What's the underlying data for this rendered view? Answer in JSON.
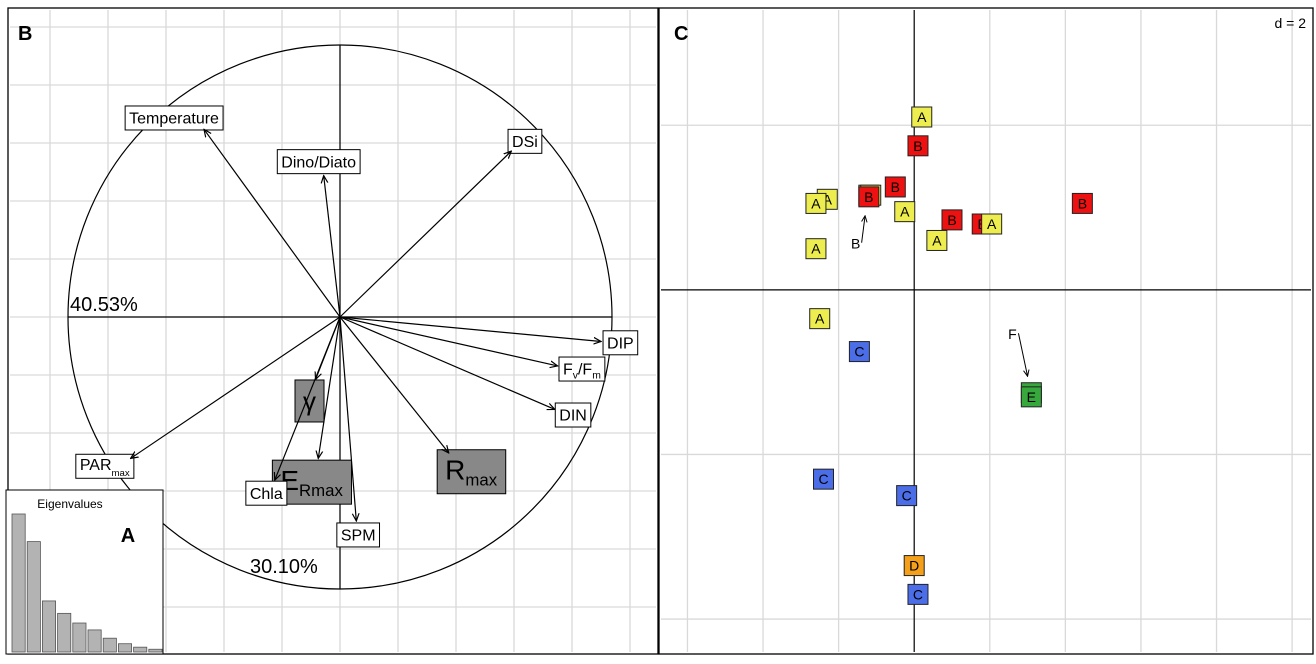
{
  "panels": {
    "b_label": "B",
    "c_label": "C",
    "a_label": "A"
  },
  "chart_data": [
    {
      "panel": "B",
      "type": "scatter",
      "subtype": "correlation circle (PCA variable loadings)",
      "axis_inertia": {
        "x": "40.53%",
        "y": "30.10%"
      },
      "variables": [
        {
          "name": "Temperature",
          "x": -0.5,
          "y": 0.69,
          "style": "box"
        },
        {
          "name": "Dino/Diato",
          "x": -0.06,
          "y": 0.52,
          "style": "box"
        },
        {
          "name": "DSi",
          "x": 0.63,
          "y": 0.61,
          "style": "box"
        },
        {
          "name": "DIP",
          "main": "DIP",
          "x": 0.96,
          "y": -0.09,
          "style": "box"
        },
        {
          "name": "Fv/Fm",
          "main": "F",
          "sub1": "v",
          "mid": "/F",
          "sub2": "m",
          "x": 0.8,
          "y": -0.18,
          "style": "box"
        },
        {
          "name": "DIN",
          "main": "DIN",
          "x": 0.79,
          "y": -0.34,
          "style": "box"
        },
        {
          "name": "PARmax",
          "main": "PAR",
          "sub": "max",
          "x": -0.77,
          "y": -0.52,
          "style": "box"
        },
        {
          "name": "γ",
          "main": "γ",
          "x": -0.09,
          "y": -0.23,
          "style": "grey"
        },
        {
          "name": "ERmax",
          "main": "E",
          "sub": "Rmax",
          "x": -0.08,
          "y": -0.52,
          "style": "grey"
        },
        {
          "name": "Chla",
          "x": -0.24,
          "y": -0.6,
          "style": "box"
        },
        {
          "name": "SPM",
          "x": 0.06,
          "y": -0.75,
          "style": "box"
        },
        {
          "name": "Rmax",
          "main": "R",
          "sub": "max",
          "x": 0.4,
          "y": -0.5,
          "style": "grey"
        }
      ]
    },
    {
      "panel": "A",
      "type": "bar",
      "title": "Eigenvalues",
      "values": [
        1.0,
        0.8,
        0.37,
        0.28,
        0.21,
        0.16,
        0.1,
        0.06,
        0.035,
        0.02
      ]
    },
    {
      "panel": "C",
      "type": "scatter",
      "subtype": "PCA sample scores",
      "grid_scale": "d = 2",
      "grid_step": 2,
      "xlim": [
        -6.7,
        10.5
      ],
      "ylim": [
        -4.4,
        3.4
      ],
      "group_colors": {
        "A": "#eded4f",
        "B": "#ee1111",
        "C": "#4b6ee8",
        "D": "#f5a01a",
        "E": "#36a83c"
      },
      "points": [
        {
          "label": "A",
          "x": 0.2,
          "y": 2.1
        },
        {
          "label": "B",
          "x": 0.1,
          "y": 1.75
        },
        {
          "label": "A",
          "x": -2.3,
          "y": 1.1
        },
        {
          "label": "A",
          "x": -1.2,
          "y": 1.15
        },
        {
          "label": "A",
          "x": -1.15,
          "y": 1.15
        },
        {
          "label": "B",
          "x": -1.2,
          "y": 1.13
        },
        {
          "label": "B",
          "x": -0.5,
          "y": 1.25
        },
        {
          "label": "A",
          "x": -0.25,
          "y": 0.95
        },
        {
          "label": "B",
          "x": 1.0,
          "y": 0.85
        },
        {
          "label": "A",
          "x": 0.6,
          "y": 0.6
        },
        {
          "label": "B",
          "x": 1.8,
          "y": 0.8
        },
        {
          "label": "A",
          "x": 2.05,
          "y": 0.8
        },
        {
          "label": "B",
          "x": 4.45,
          "y": 1.05
        },
        {
          "label": "A",
          "x": -2.6,
          "y": 1.05
        },
        {
          "label": "A",
          "x": -2.6,
          "y": 0.5
        },
        {
          "label": "A",
          "x": -2.5,
          "y": -0.35
        },
        {
          "label": "C",
          "x": -1.45,
          "y": -0.75
        },
        {
          "label": "C",
          "x": -2.4,
          "y": -2.3
        },
        {
          "label": "C",
          "x": -0.2,
          "y": -2.5
        },
        {
          "label": "D",
          "x": 0.0,
          "y": -3.35
        },
        {
          "label": "C",
          "x": 0.1,
          "y": -3.7
        },
        {
          "label": "E",
          "x": 3.1,
          "y": -1.25
        },
        {
          "label": "E",
          "x": 3.1,
          "y": -1.3
        }
      ],
      "annotations": [
        {
          "text": "B",
          "x": -1.55,
          "y": 0.5,
          "arrow_to": [
            -1.3,
            0.9
          ]
        },
        {
          "text": "F",
          "x": 2.6,
          "y": -0.6,
          "arrow_to": [
            3.0,
            -1.05
          ]
        }
      ]
    }
  ]
}
